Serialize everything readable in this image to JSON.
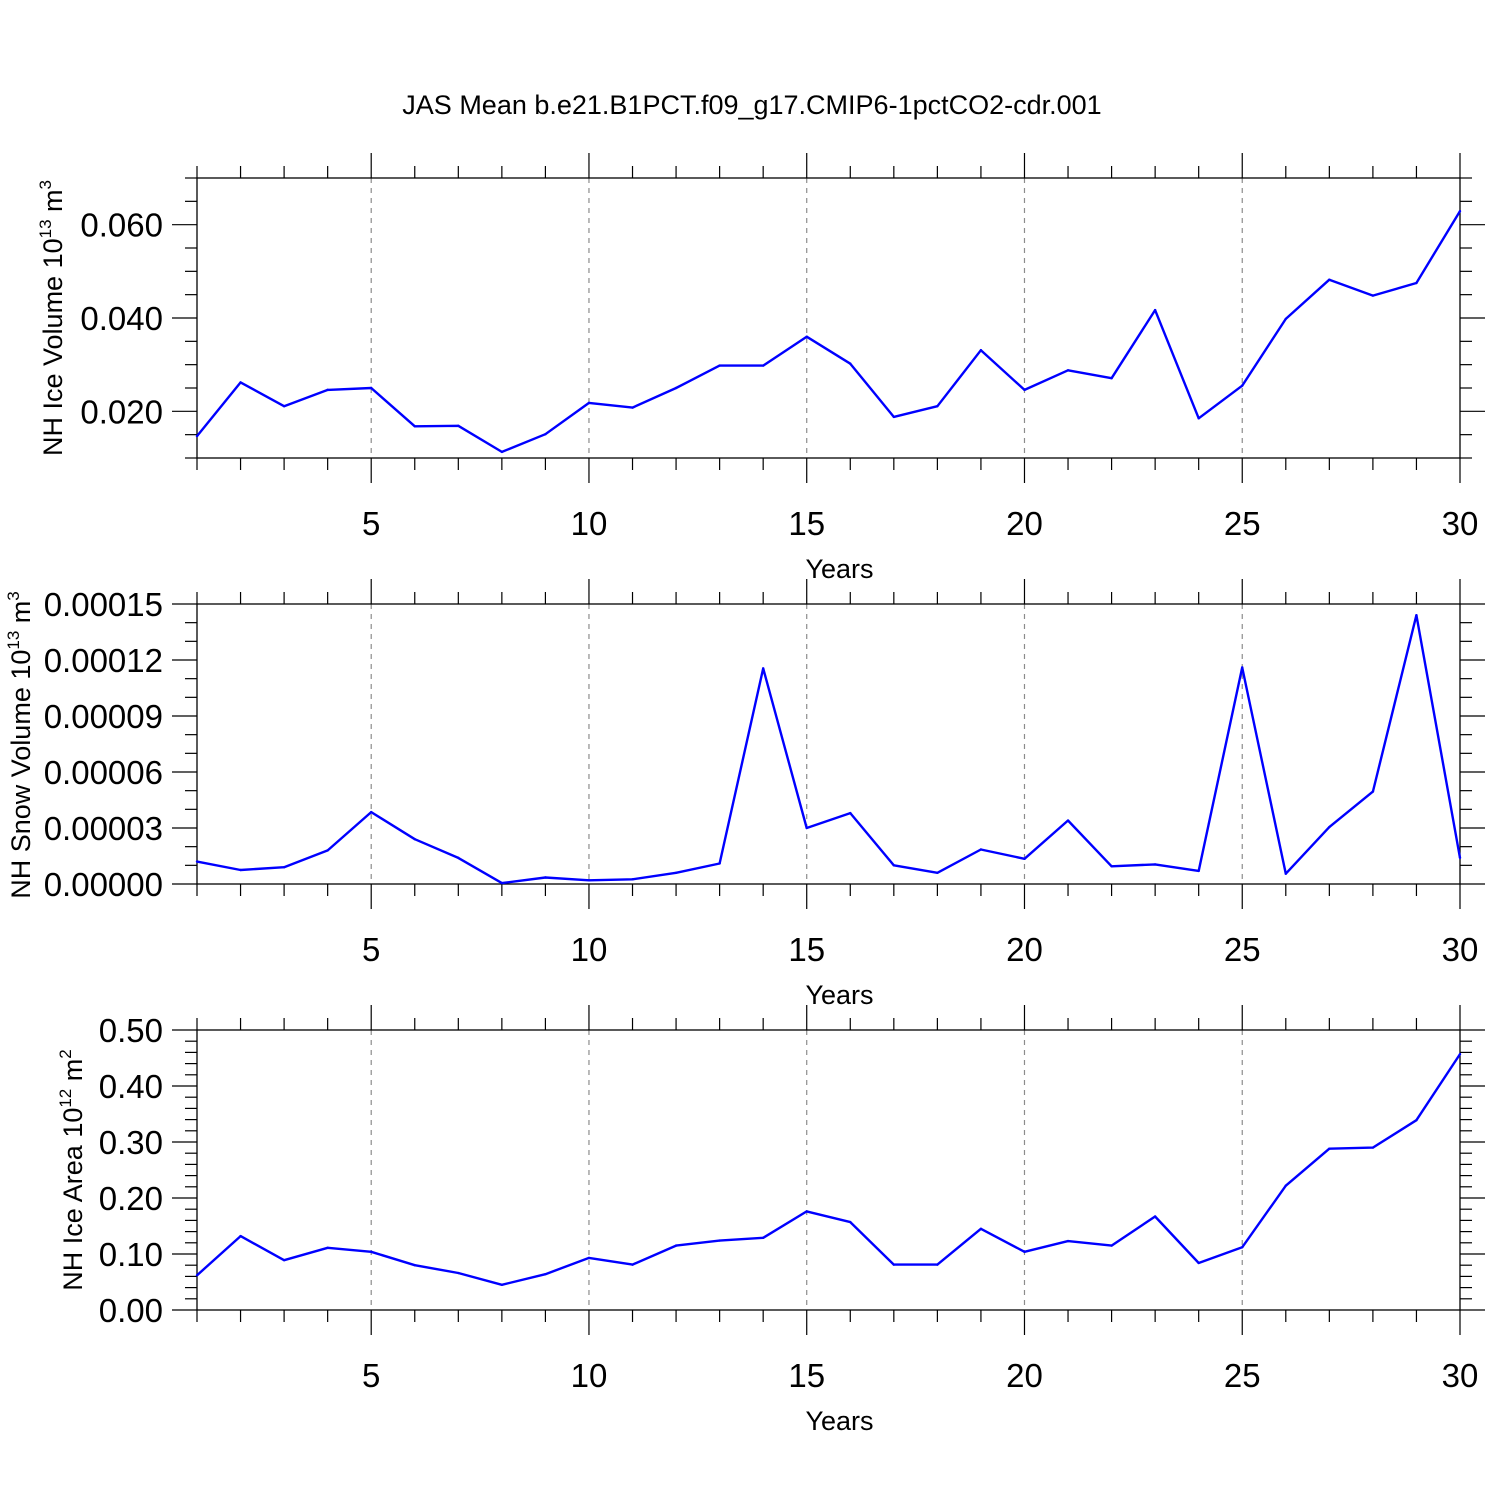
{
  "title": "JAS Mean b.e21.B1PCT.f09_g17.CMIP6-1pctCO2-cdr.001",
  "colors": {
    "line": "#0000ff",
    "axes": "#000000",
    "grid": "#8c8c8c"
  },
  "chart_data": [
    {
      "type": "line",
      "title": "JAS Mean b.e21.B1PCT.f09_g17.CMIP6-1pctCO2-cdr.001",
      "xlabel": "Years",
      "ylabel": {
        "text": "NH Ice Volume 10",
        "exponent": "13",
        "unit": " m",
        "unit_exponent": "3"
      },
      "xlim": [
        1,
        30
      ],
      "ylim": [
        0.01,
        0.07
      ],
      "xticks": [
        5,
        10,
        15,
        20,
        25,
        30
      ],
      "xtick_labels": [
        "5",
        "10",
        "15",
        "20",
        "25",
        "30"
      ],
      "yticks": [
        0.02,
        0.04,
        0.06
      ],
      "ytick_labels": [
        "0.020",
        "0.040",
        "0.060"
      ],
      "minor_y_step": 0.005,
      "grid_x": true,
      "x": [
        1,
        2,
        3,
        4,
        5,
        6,
        7,
        8,
        9,
        10,
        11,
        12,
        13,
        14,
        15,
        16,
        17,
        18,
        19,
        20,
        21,
        22,
        23,
        24,
        25,
        26,
        27,
        28,
        29,
        30
      ],
      "series": [
        {
          "name": "NH Ice Volume",
          "values": [
            0.0147,
            0.0262,
            0.0211,
            0.0246,
            0.025,
            0.0168,
            0.0169,
            0.0113,
            0.0151,
            0.0218,
            0.0208,
            0.025,
            0.0298,
            0.0298,
            0.036,
            0.0302,
            0.0188,
            0.0211,
            0.0331,
            0.0246,
            0.0288,
            0.0271,
            0.0417,
            0.0185,
            0.0255,
            0.0398,
            0.0482,
            0.0448,
            0.0475,
            0.0629
          ]
        }
      ]
    },
    {
      "type": "line",
      "xlabel": "Years",
      "ylabel": {
        "text": "NH Snow Volume 10",
        "exponent": "13",
        "unit": " m",
        "unit_exponent": "3"
      },
      "xlim": [
        1,
        30
      ],
      "ylim": [
        0.0,
        0.00015
      ],
      "xticks": [
        5,
        10,
        15,
        20,
        25,
        30
      ],
      "xtick_labels": [
        "5",
        "10",
        "15",
        "20",
        "25",
        "30"
      ],
      "yticks": [
        0.0,
        3e-05,
        6e-05,
        9e-05,
        0.00012,
        0.00015
      ],
      "ytick_labels": [
        "0.00000",
        "0.00003",
        "0.00006",
        "0.00009",
        "0.00012",
        "0.00015"
      ],
      "minor_y_step": 1e-05,
      "grid_x": true,
      "x": [
        1,
        2,
        3,
        4,
        5,
        6,
        7,
        8,
        9,
        10,
        11,
        12,
        13,
        14,
        15,
        16,
        17,
        18,
        19,
        20,
        21,
        22,
        23,
        24,
        25,
        26,
        27,
        28,
        29,
        30
      ],
      "series": [
        {
          "name": "NH Snow Volume",
          "values": [
            1.2e-05,
            7.5e-06,
            9e-06,
            1.8e-05,
            3.85e-05,
            2.4e-05,
            1.4e-05,
            5e-07,
            3.5e-06,
            2e-06,
            2.5e-06,
            6e-06,
            1.1e-05,
            0.0001155,
            3e-05,
            3.8e-05,
            1e-05,
            6e-06,
            1.85e-05,
            1.35e-05,
            3.4e-05,
            9.5e-06,
            1.05e-05,
            7e-06,
            0.000116,
            5.5e-06,
            3.05e-05,
            4.95e-05,
            0.000144,
            1.4e-05
          ]
        }
      ]
    },
    {
      "type": "line",
      "xlabel": "Years",
      "ylabel": {
        "text": "NH Ice Area 10",
        "exponent": "12",
        "unit": " m",
        "unit_exponent": "2"
      },
      "xlim": [
        1,
        30
      ],
      "ylim": [
        0.0,
        0.5
      ],
      "xticks": [
        5,
        10,
        15,
        20,
        25,
        30
      ],
      "xtick_labels": [
        "5",
        "10",
        "15",
        "20",
        "25",
        "30"
      ],
      "yticks": [
        0.0,
        0.1,
        0.2,
        0.3,
        0.4,
        0.5
      ],
      "ytick_labels": [
        "0.00",
        "0.10",
        "0.20",
        "0.30",
        "0.40",
        "0.50"
      ],
      "minor_y_step": 0.02,
      "grid_x": true,
      "x": [
        1,
        2,
        3,
        4,
        5,
        6,
        7,
        8,
        9,
        10,
        11,
        12,
        13,
        14,
        15,
        16,
        17,
        18,
        19,
        20,
        21,
        22,
        23,
        24,
        25,
        26,
        27,
        28,
        29,
        30
      ],
      "series": [
        {
          "name": "NH Ice Area",
          "values": [
            0.062,
            0.132,
            0.089,
            0.111,
            0.104,
            0.08,
            0.066,
            0.045,
            0.064,
            0.093,
            0.081,
            0.115,
            0.124,
            0.129,
            0.176,
            0.157,
            0.081,
            0.081,
            0.145,
            0.104,
            0.123,
            0.115,
            0.167,
            0.084,
            0.112,
            0.222,
            0.288,
            0.29,
            0.339,
            0.457
          ]
        }
      ]
    }
  ]
}
